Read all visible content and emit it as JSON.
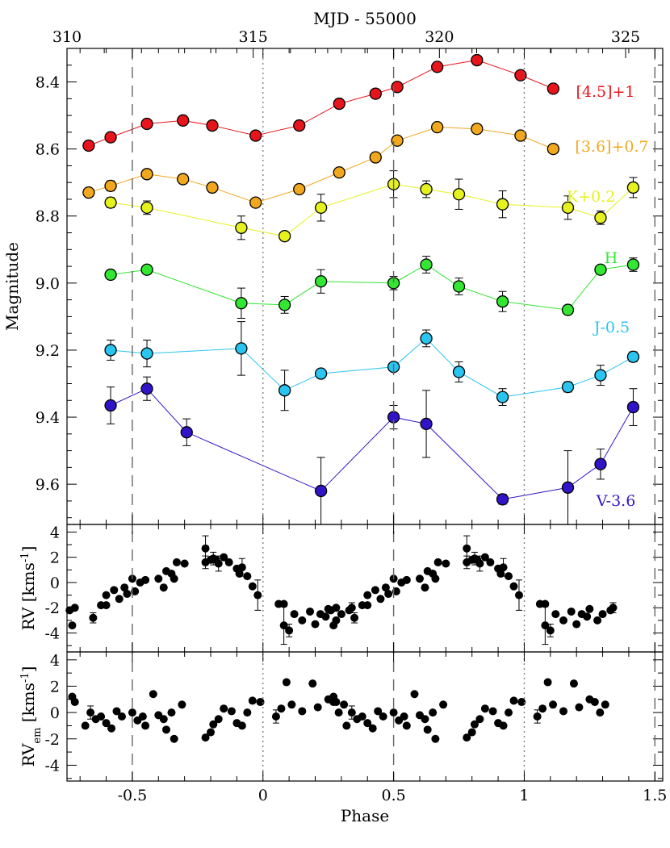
{
  "chart_data": [
    {
      "type": "scatter",
      "panel": "photometry",
      "xlabel": "Phase",
      "top_axis_label": "MJD - 55000",
      "ylabel": "Magnitude",
      "xlim": [
        -0.75,
        1.53
      ],
      "ylim": [
        9.72,
        8.3
      ],
      "y_inverted": true,
      "x_ticks": [
        "-0.5",
        "0",
        "0.5",
        "1",
        "1.5"
      ],
      "top_ticks": [
        "310",
        "315",
        "320",
        "325"
      ],
      "top_tick_values": [
        310,
        315,
        320,
        325
      ],
      "y_ticks": [
        "8.4",
        "8.6",
        "8.8",
        "9.0",
        "9.2",
        "9.4",
        "9.6"
      ],
      "dashed_lines_phase": [
        -0.5,
        0.5,
        1.5
      ],
      "dotted_lines_phase": [
        0,
        1
      ],
      "series": [
        {
          "name": "[4.5]+1",
          "color": "#e8141c",
          "x": [
            -0.667,
            -0.583,
            -0.444,
            -0.306,
            -0.194,
            -0.028,
            0.139,
            0.292,
            0.431,
            0.514,
            0.667,
            0.819,
            0.986,
            1.111
          ],
          "y": [
            8.59,
            8.565,
            8.525,
            8.515,
            8.53,
            8.56,
            8.53,
            8.465,
            8.435,
            8.415,
            8.355,
            8.335,
            8.38,
            8.42
          ],
          "err": [
            0.01,
            0.01,
            0.01,
            0.01,
            0.01,
            0.01,
            0.01,
            0.01,
            0.01,
            0.01,
            0.01,
            0.01,
            0.01,
            0.01
          ]
        },
        {
          "name": "[3.6]+0.7",
          "color": "#f2a81e",
          "x": [
            -0.667,
            -0.583,
            -0.444,
            -0.306,
            -0.194,
            -0.028,
            0.139,
            0.292,
            0.431,
            0.514,
            0.667,
            0.819,
            0.986,
            1.111
          ],
          "y": [
            8.73,
            8.71,
            8.675,
            8.69,
            8.715,
            8.76,
            8.72,
            8.67,
            8.625,
            8.575,
            8.535,
            8.54,
            8.56,
            8.6
          ],
          "err": [
            0.01,
            0.015,
            0.01,
            0.01,
            0.01,
            0.01,
            0.01,
            0.01,
            0.01,
            0.01,
            0.01,
            0.01,
            0.01,
            0.01
          ]
        },
        {
          "name": "K+0.2",
          "color": "#e6f21e",
          "x": [
            -0.583,
            -0.444,
            -0.083,
            0.083,
            0.222,
            0.5,
            0.625,
            0.75,
            0.917,
            1.167,
            1.292,
            1.417
          ],
          "y": [
            8.76,
            8.775,
            8.835,
            8.86,
            8.775,
            8.705,
            8.72,
            8.735,
            8.765,
            8.775,
            8.805,
            8.715
          ],
          "err": [
            0.015,
            0.02,
            0.035,
            0.01,
            0.04,
            0.04,
            0.025,
            0.045,
            0.04,
            0.035,
            0.02,
            0.03
          ]
        },
        {
          "name": "H",
          "color": "#32e632",
          "x": [
            -0.583,
            -0.444,
            -0.083,
            0.083,
            0.222,
            0.5,
            0.625,
            0.75,
            0.917,
            1.167,
            1.292,
            1.417
          ],
          "y": [
            8.975,
            8.96,
            9.06,
            9.065,
            8.995,
            9.0,
            8.945,
            9.01,
            9.055,
            9.08,
            8.96,
            8.945
          ],
          "err": [
            0.01,
            0.01,
            0.045,
            0.025,
            0.035,
            0.02,
            0.025,
            0.025,
            0.03,
            0.01,
            0.01,
            0.02
          ]
        },
        {
          "name": "J-0.5",
          "color": "#29c4f0",
          "x": [
            -0.583,
            -0.444,
            -0.083,
            0.083,
            0.222,
            0.5,
            0.625,
            0.75,
            0.917,
            1.167,
            1.292,
            1.417
          ],
          "y": [
            9.2,
            9.21,
            9.195,
            9.32,
            9.27,
            9.25,
            9.165,
            9.265,
            9.34,
            9.31,
            9.275,
            9.22
          ],
          "err": [
            0.03,
            0.04,
            0.08,
            0.06,
            0.01,
            0.01,
            0.025,
            0.03,
            0.025,
            0.015,
            0.03,
            0.015
          ]
        },
        {
          "name": "V-3.6",
          "color": "#3214c8",
          "x": [
            -0.583,
            -0.444,
            -0.292,
            0.222,
            0.5,
            0.625,
            0.917,
            1.167,
            1.292,
            1.417
          ],
          "y": [
            9.365,
            9.315,
            9.445,
            9.62,
            9.4,
            9.42,
            9.645,
            9.61,
            9.54,
            9.37
          ],
          "err": [
            0.055,
            0.035,
            0.04,
            0.1,
            0.035,
            0.1,
            0.015,
            0.11,
            0.045,
            0.055
          ]
        }
      ]
    },
    {
      "type": "scatter",
      "panel": "radial-velocity",
      "ylabel_main": "RV [kms",
      "ylabel_sup": "-1",
      "ylabel_end": "]",
      "xlim": [
        -0.75,
        1.53
      ],
      "ylim": [
        -5.5,
        4.6
      ],
      "y_ticks": [
        "4",
        "2",
        "0",
        "-2",
        "-4"
      ],
      "y_tick_values": [
        4,
        2,
        0,
        -2,
        -4
      ],
      "series": [
        {
          "name": "",
          "x": [
            -0.74,
            -0.72,
            -0.73,
            -0.65,
            -0.62,
            -0.6,
            -0.55,
            -0.52,
            -0.6,
            -0.57,
            -0.53,
            -0.5,
            -0.47,
            -0.49,
            -0.45,
            -0.4,
            -0.37,
            -0.35,
            -0.3,
            -0.38,
            -0.33,
            -0.34,
            -0.22,
            -0.2,
            -0.22,
            -0.19,
            -0.17,
            -0.15,
            -0.13,
            -0.18,
            -0.08,
            -0.1,
            -0.09,
            -0.06,
            -0.04,
            -0.02,
            0.06,
            0.08,
            0.08,
            0.1,
            0.12,
            0.15,
            0.18,
            0.2,
            0.22,
            0.24,
            0.25,
            0.28,
            0.3,
            0.33,
            0.34
          ],
          "y": [
            -2.2,
            -2.0,
            -3.4,
            -2.8,
            -1.8,
            -1.8,
            -1.3,
            -0.9,
            -1.0,
            -0.6,
            -0.4,
            0.3,
            0.0,
            -0.7,
            0.2,
            0.3,
            0.9,
            0.7,
            1.5,
            -0.4,
            1.6,
            0.3,
            2.7,
            1.8,
            1.6,
            1.9,
            1.5,
            2.0,
            1.6,
            1.8,
            1.2,
            1.1,
            0.7,
            0.5,
            -0.3,
            -1.0,
            -1.7,
            -1.7,
            -3.4,
            -3.8,
            -2.5,
            -3.0,
            -2.3,
            -3.3,
            -2.5,
            -2.7,
            -2.1,
            -3.0,
            -2.5,
            -2.2,
            -2.0
          ],
          "err": [
            0,
            0,
            0,
            0.4,
            0,
            0,
            0,
            0,
            0,
            0,
            0,
            0,
            0,
            0,
            0,
            0,
            0,
            0,
            0,
            0,
            0,
            0,
            1.0,
            0,
            0.5,
            0.5,
            0.6,
            0,
            0,
            0,
            0.7,
            0,
            0,
            0,
            0,
            1.2,
            0,
            0,
            1.5,
            0.5,
            0,
            0,
            0,
            0,
            0,
            0,
            0,
            0,
            0,
            0,
            0.4
          ]
        }
      ]
    },
    {
      "type": "scatter",
      "panel": "emission-rv",
      "ylabel_main": "RV",
      "ylabel_sub": "em",
      "ylabel_mid": " [kms",
      "ylabel_sup": "-1",
      "ylabel_end": "]",
      "xlim": [
        -0.75,
        1.53
      ],
      "ylim": [
        -5.2,
        4.6
      ],
      "y_ticks": [
        "4",
        "2",
        "0",
        "-2",
        "-4"
      ],
      "y_tick_values": [
        4,
        2,
        0,
        -2,
        -4
      ],
      "series": [
        {
          "name": "",
          "x": [
            -0.73,
            -0.72,
            -0.68,
            -0.66,
            -0.64,
            -0.62,
            -0.6,
            -0.58,
            -0.56,
            -0.54,
            -0.5,
            -0.48,
            -0.46,
            -0.45,
            -0.42,
            -0.4,
            -0.38,
            -0.37,
            -0.35,
            -0.34,
            -0.31,
            -0.22,
            -0.2,
            -0.19,
            -0.17,
            -0.15,
            -0.12,
            -0.1,
            -0.08,
            -0.06,
            -0.04,
            -0.01,
            0.05,
            0.07,
            0.09,
            0.11,
            0.15,
            0.19,
            0.21,
            0.25,
            0.27,
            0.29,
            0.31
          ],
          "y": [
            1.2,
            0.8,
            -1.0,
            0.0,
            -0.5,
            -0.3,
            -0.8,
            -1.2,
            0.1,
            -0.3,
            0.0,
            -0.6,
            -0.3,
            -1.0,
            1.4,
            -0.2,
            -0.5,
            -1.3,
            0.0,
            -2.0,
            0.6,
            -1.9,
            -1.5,
            -0.9,
            -0.5,
            0.3,
            0.1,
            -0.8,
            -1.0,
            0.0,
            0.9,
            0.8,
            -0.3,
            0.3,
            2.3,
            0.6,
            0.1,
            2.2,
            0.4,
            1.0,
            0.8,
            0.0,
            0.6
          ],
          "err": [
            0,
            0,
            0,
            0.5,
            0,
            0,
            0,
            0,
            0,
            0,
            0,
            0,
            0,
            0,
            0,
            0,
            0,
            0,
            0,
            0,
            0,
            0,
            0,
            0,
            0,
            0,
            0,
            0,
            0,
            0,
            0,
            0,
            0.5,
            0,
            0,
            0,
            0,
            0,
            0,
            0,
            0,
            0,
            0
          ]
        }
      ]
    }
  ]
}
